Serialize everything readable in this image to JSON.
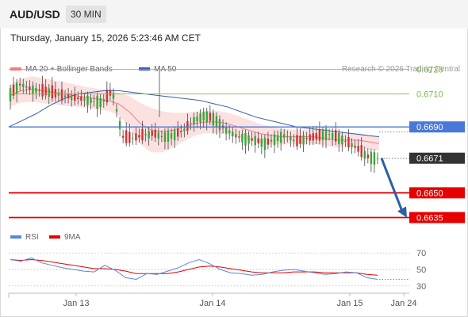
{
  "header": {
    "pair": "AUD/USD",
    "timeframe": "30 MIN"
  },
  "datetime": "Thursday, January 15, 2026 5:23:46 AM CET",
  "credit": "Research © 2026 Trading Central",
  "colors": {
    "bollinger": "#f08080",
    "ma50": "#3b5ea8",
    "resistance": "#7db84a",
    "pivot": "#4a78d8",
    "support": "#e60000",
    "price_label": "#333333",
    "rsi": "#5a86d8",
    "rsi_ma": "#e60000",
    "up": "#3aa53a",
    "down": "#d23030",
    "arrow": "#2f5ea3"
  },
  "chart_data": [
    {
      "type": "line",
      "title": "",
      "legend": [
        {
          "name": "MA 20 + Bollinger Bands",
          "color": "#f08080"
        },
        {
          "name": "MA 50",
          "color": "#3b5ea8"
        }
      ],
      "ylim": [
        0.6629,
        0.673
      ],
      "x_ticks": [
        "Jan 13",
        "Jan 14",
        "Jan 15",
        "Jan 24"
      ],
      "levels": [
        {
          "label": "0.6725",
          "value": 0.6725,
          "kind": "resistance"
        },
        {
          "label": "0.6710",
          "value": 0.671,
          "kind": "resistance"
        },
        {
          "label": "0.6690",
          "value": 0.669,
          "kind": "pivot"
        },
        {
          "label": "0.6671",
          "value": 0.6671,
          "kind": "last"
        },
        {
          "label": "0.6650",
          "value": 0.665,
          "kind": "support"
        },
        {
          "label": "0.6635",
          "value": 0.6635,
          "kind": "support"
        }
      ],
      "forecast": {
        "from": 0.6671,
        "to": 0.6635,
        "direction": "down"
      },
      "series": [
        {
          "name": "MA 50",
          "values": [
            0.669,
            0.6694,
            0.6698,
            0.6703,
            0.6707,
            0.671,
            0.6711,
            0.6712,
            0.6712,
            0.6711,
            0.671,
            0.6709,
            0.6708,
            0.6707,
            0.6706,
            0.6704,
            0.6702,
            0.6699,
            0.6696,
            0.6694,
            0.6692,
            0.669,
            0.6689,
            0.6688,
            0.6687,
            0.6686,
            0.6685,
            0.6684
          ]
        },
        {
          "name": "Price",
          "values": [
            0.671,
            0.6716,
            0.6713,
            0.6712,
            0.6711,
            0.6709,
            0.6708,
            0.6707,
            0.6706,
            0.6705,
            0.6712,
            0.6684,
            0.6683,
            0.6685,
            0.6686,
            0.6684,
            0.6685,
            0.6688,
            0.6694,
            0.6697,
            0.6695,
            0.6689,
            0.6685,
            0.6683,
            0.6682,
            0.668,
            0.6683,
            0.6685,
            0.6681,
            0.6683,
            0.6684,
            0.6686,
            0.6684,
            0.6681,
            0.6677,
            0.6672,
            0.6671
          ]
        },
        {
          "name": "MA 20",
          "values": [
            0.6709,
            0.6712,
            0.6713,
            0.6712,
            0.6711,
            0.671,
            0.6709,
            0.6708,
            0.6707,
            0.6706,
            0.6704,
            0.6699,
            0.6692,
            0.6688,
            0.6687,
            0.6688,
            0.669,
            0.6692,
            0.6693,
            0.6693,
            0.6692,
            0.669,
            0.6688,
            0.6686,
            0.6685,
            0.6684,
            0.6684,
            0.6684,
            0.6684,
            0.6683,
            0.6682,
            0.6682,
            0.6682,
            0.6681,
            0.668
          ]
        }
      ]
    },
    {
      "type": "line",
      "legend": [
        {
          "name": "RSI",
          "color": "#5a86d8"
        },
        {
          "name": "9MA",
          "color": "#e60000"
        }
      ],
      "ylim": [
        25,
        75
      ],
      "y_ticks": [
        70,
        50,
        30
      ],
      "series": [
        {
          "name": "RSI",
          "values": [
            62,
            60,
            64,
            58,
            55,
            52,
            50,
            48,
            47,
            55,
            49,
            40,
            38,
            45,
            44,
            48,
            52,
            58,
            62,
            57,
            50,
            46,
            45,
            43,
            44,
            47,
            49,
            50,
            48,
            46,
            44,
            45,
            47,
            46,
            40,
            38
          ]
        },
        {
          "name": "9MA",
          "values": [
            62,
            61,
            62,
            61,
            59,
            57,
            55,
            53,
            51,
            51,
            50,
            48,
            45,
            45,
            45,
            45,
            47,
            50,
            53,
            54,
            53,
            51,
            49,
            47,
            46,
            46,
            46,
            47,
            47,
            47,
            46,
            46,
            46,
            46,
            44,
            43
          ]
        }
      ]
    }
  ]
}
